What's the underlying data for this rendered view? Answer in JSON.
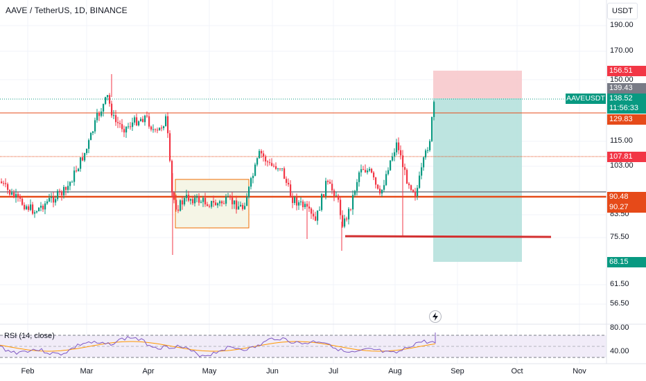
{
  "header": {
    "title": "AAVE / TetherUS, 1D, BINANCE",
    "currency": "USDT"
  },
  "price_axis": {
    "ticks": [
      "190.00",
      "170.00",
      "150.00",
      "115.00",
      "103.00",
      "83.50",
      "75.50",
      "61.50",
      "56.50"
    ]
  },
  "price_labels": {
    "target_top": "156.51",
    "prev_close": "139.43",
    "symbol": "AAVEUSDT",
    "last_price": "138.52",
    "countdown": "11:56:33",
    "level_1": "129.83",
    "level_2": "107.81",
    "level_3": "90.48",
    "level_4": "90.27",
    "stop_bottom": "68.15"
  },
  "colors": {
    "up": "#089981",
    "down": "#f23645",
    "level_line": "#e64a19",
    "gray_line": "#787b86",
    "target_zone": "#f7c5c9",
    "stop_zone": "#b2dfdb",
    "range_box": "#f5f5e6",
    "support_line": "#d32f2f",
    "rsi_line": "#7e57c2",
    "rsi_ma": "#ff9800",
    "rsi_band": "#ede7f6"
  },
  "rsi": {
    "label": "RSI (14, close)",
    "ticks": [
      "80.00",
      "40.00"
    ]
  },
  "time_axis": {
    "labels": [
      "Feb",
      "Mar",
      "Apr",
      "May",
      "Jun",
      "Jul",
      "Aug",
      "Sep",
      "Oct",
      "Nov"
    ]
  },
  "icons": {
    "flash": "lightning-icon"
  }
}
